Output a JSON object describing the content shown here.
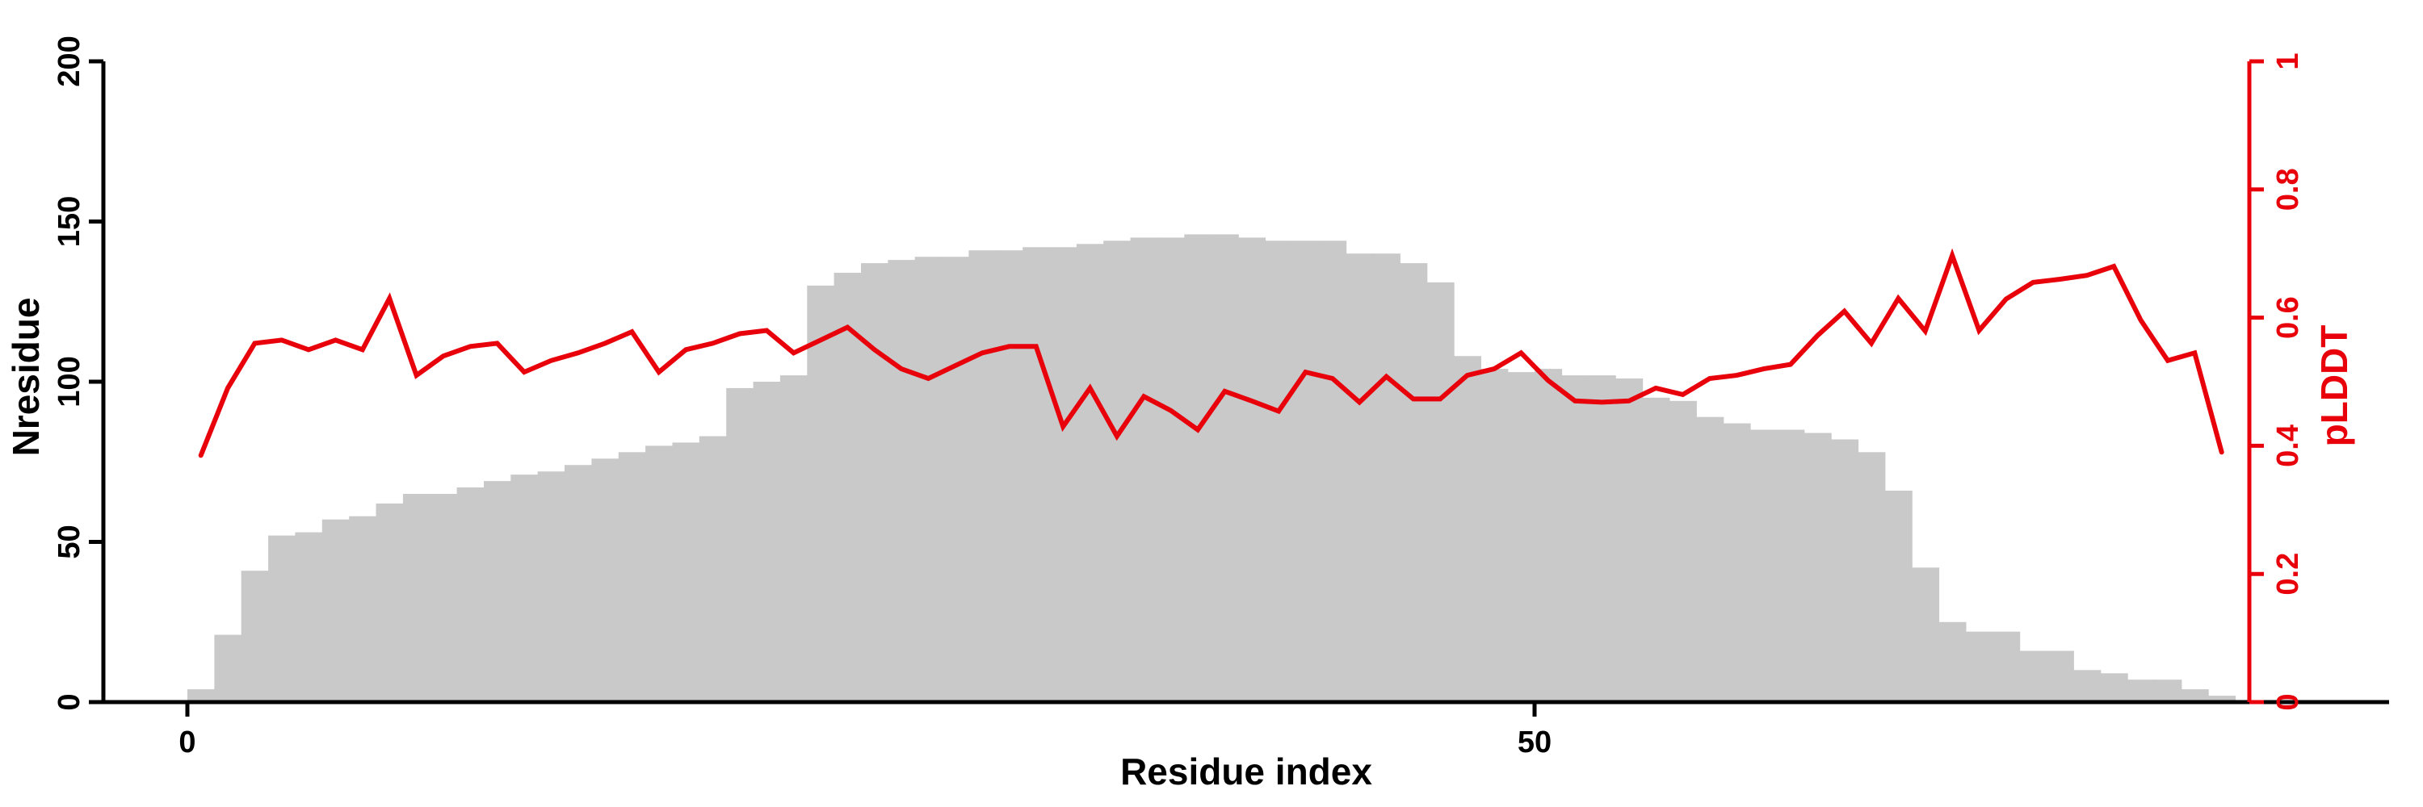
{
  "chart_data": {
    "type": "bar",
    "title": "",
    "xlabel": "Residue index",
    "ylabel_left": "Nresidue",
    "ylabel_right": "pLDDT",
    "xlim": [
      0,
      76
    ],
    "ylim_left": [
      0,
      200
    ],
    "ylim_right": [
      0,
      1
    ],
    "grid": "off",
    "legend": "none",
    "xticks": [
      0,
      50
    ],
    "xtick_labels": [
      "0",
      "50"
    ],
    "yticks_left": [
      0,
      50,
      100,
      150,
      200
    ],
    "ytick_labels_left": [
      "0",
      "50",
      "100",
      "150",
      "200"
    ],
    "yticks_right": [
      0,
      0.2,
      0.4,
      0.6,
      0.8,
      1
    ],
    "ytick_labels_right": [
      "0",
      "0.2",
      "0.4",
      "0.6",
      "0.8",
      "1"
    ],
    "bar_color": "#c9c9c9",
    "line_color": "#e8000b",
    "left_axis_color": "#000000",
    "right_axis_color": "#e8000b",
    "categories_note": "residue index bins 1..76",
    "series": [
      {
        "name": "Nresidue",
        "axis": "left",
        "style": "bar",
        "values": [
          4,
          21,
          41,
          52,
          53,
          57,
          58,
          62,
          65,
          65,
          67,
          69,
          71,
          72,
          74,
          76,
          78,
          80,
          81,
          83,
          98,
          100,
          102,
          130,
          134,
          137,
          138,
          139,
          139,
          141,
          141,
          142,
          142,
          143,
          144,
          145,
          145,
          146,
          146,
          145,
          144,
          144,
          144,
          140,
          140,
          137,
          131,
          108,
          104,
          103,
          104,
          102,
          102,
          101,
          95,
          94,
          89,
          87,
          85,
          85,
          84,
          82,
          78,
          66,
          42,
          25,
          22,
          22,
          16,
          16,
          10,
          9,
          7,
          7,
          4,
          2
        ]
      },
      {
        "name": "pLDDT",
        "axis": "right",
        "style": "line",
        "values": [
          0.385,
          0.49,
          0.56,
          0.565,
          0.55,
          0.565,
          0.55,
          0.63,
          0.51,
          0.54,
          0.555,
          0.56,
          0.515,
          0.533,
          0.545,
          0.56,
          0.578,
          0.515,
          0.55,
          0.56,
          0.575,
          0.58,
          0.545,
          0.565,
          0.585,
          0.55,
          0.52,
          0.505,
          0.525,
          0.545,
          0.555,
          0.555,
          0.43,
          0.49,
          0.415,
          0.477,
          0.455,
          0.425,
          0.485,
          0.47,
          0.454,
          0.515,
          0.505,
          0.468,
          0.508,
          0.473,
          0.473,
          0.51,
          0.52,
          0.545,
          0.502,
          0.47,
          0.468,
          0.47,
          0.49,
          0.48,
          0.505,
          0.51,
          0.52,
          0.527,
          0.572,
          0.61,
          0.56,
          0.63,
          0.579,
          0.697,
          0.58,
          0.629,
          0.655,
          0.66,
          0.666,
          0.68,
          0.596,
          0.533,
          0.545,
          0.39
        ]
      }
    ]
  }
}
